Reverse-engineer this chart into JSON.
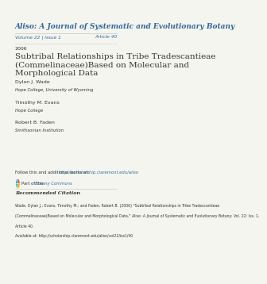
{
  "bg_color": "#f5f5f0",
  "journal_title": "Aliso: A Journal of Systematic and Evolutionary Botany",
  "journal_title_color": "#336699",
  "volume_issue": "Volume 22 | Issue 1",
  "article_num": "Article 40",
  "year": "2006",
  "paper_title_line1": "Subtribal Relationships in Tribe Tradescantieae",
  "paper_title_line2": "(Commelinaceae)Based on Molecular and",
  "paper_title_line3": "Morphological Data",
  "author1_name": "Dylan J. Wade",
  "author1_affil": "Hope College, University of Wyoming",
  "author2_name": "Timothy M. Evans",
  "author2_affil": "Hope College",
  "author3_name": "Robert B. Faden",
  "author3_affil": "Smithsonian Institution",
  "follow_text": "Follow this and additional works at: ",
  "follow_link": "http://scholarship.claremont.edu/aliso",
  "part_of_text": "Part of the ",
  "part_of_link": "Botany Commons",
  "citation_header": "Recommended Citation",
  "citation_line1": "Wade, Dylan J.; Evans, Timothy M.; and Faden, Robert B. (2006) \"Subtribal Relationships in Tribe Tradescantieae",
  "citation_line2": "(Commelinaceae)Based on Molecular and Morphological Data,\" Aliso: A Journal of Systematic and Evolutionary Botany: Vol. 22: Iss. 1,",
  "citation_line3": "Article 40.",
  "citation_line4": "Available at: http://scholarship.claremont.edu/aliso/vol22/iss1/40",
  "link_color": "#336699",
  "text_color": "#333333",
  "line_color": "#cccccc",
  "title_fontsize": 7.5,
  "body_fontsize": 4.5,
  "small_fontsize": 3.8
}
